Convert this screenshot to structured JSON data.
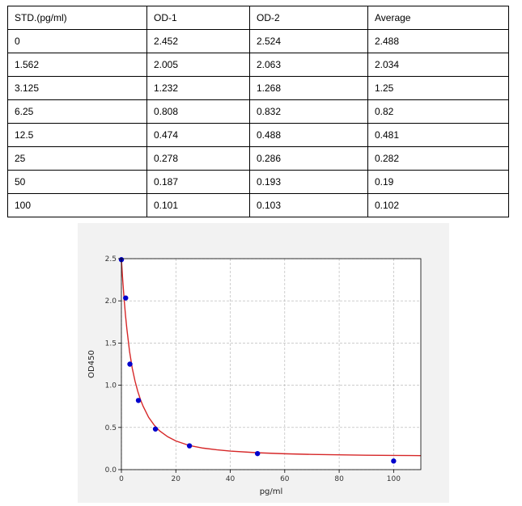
{
  "table": {
    "headers": [
      "STD.(pg/ml)",
      "OD-1",
      "OD-2",
      "Average"
    ],
    "rows": [
      [
        "0",
        "2.452",
        "2.524",
        "2.488"
      ],
      [
        "1.562",
        "2.005",
        "2.063",
        "2.034"
      ],
      [
        "3.125",
        "1.232",
        "1.268",
        "1.25"
      ],
      [
        "6.25",
        "0.808",
        "0.832",
        "0.82"
      ],
      [
        "12.5",
        "0.474",
        "0.488",
        "0.481"
      ],
      [
        "25",
        "0.278",
        "0.286",
        "0.282"
      ],
      [
        "50",
        "0.187",
        "0.193",
        "0.19"
      ],
      [
        "100",
        "0.101",
        "0.103",
        "0.102"
      ]
    ]
  },
  "chart_data": {
    "type": "scatter",
    "title": "",
    "xlabel": "pg/ml",
    "ylabel": "OD450",
    "xlim": [
      0,
      110
    ],
    "ylim": [
      0,
      2.5
    ],
    "x_ticks": [
      0,
      20,
      40,
      60,
      80,
      100
    ],
    "y_ticks": [
      0.0,
      0.5,
      1.0,
      1.5,
      2.0,
      2.5
    ],
    "x_tick_labels": [
      "0",
      "20",
      "40",
      "60",
      "80",
      "100"
    ],
    "y_tick_labels": [
      "0.0",
      "0.5",
      "1.0",
      "1.5",
      "2.0",
      "2.5"
    ],
    "grid": true,
    "points": {
      "x": [
        0,
        1.562,
        3.125,
        6.25,
        12.5,
        25,
        50,
        100
      ],
      "y": [
        2.488,
        2.034,
        1.25,
        0.82,
        0.481,
        0.282,
        0.19,
        0.102
      ],
      "color": "#0000cc"
    },
    "fit_curve": {
      "color": "#d62728",
      "x": [
        0,
        0.5,
        1,
        1.5,
        2,
        3,
        4,
        5,
        6,
        7,
        8,
        10,
        12,
        14,
        17,
        20,
        25,
        30,
        35,
        40,
        50,
        60,
        70,
        80,
        90,
        100,
        110
      ],
      "y": [
        2.49,
        2.24,
        2.02,
        1.83,
        1.67,
        1.4,
        1.2,
        1.05,
        0.93,
        0.83,
        0.75,
        0.62,
        0.53,
        0.46,
        0.39,
        0.34,
        0.285,
        0.255,
        0.235,
        0.22,
        0.2,
        0.188,
        0.18,
        0.175,
        0.171,
        0.168,
        0.166
      ]
    }
  }
}
